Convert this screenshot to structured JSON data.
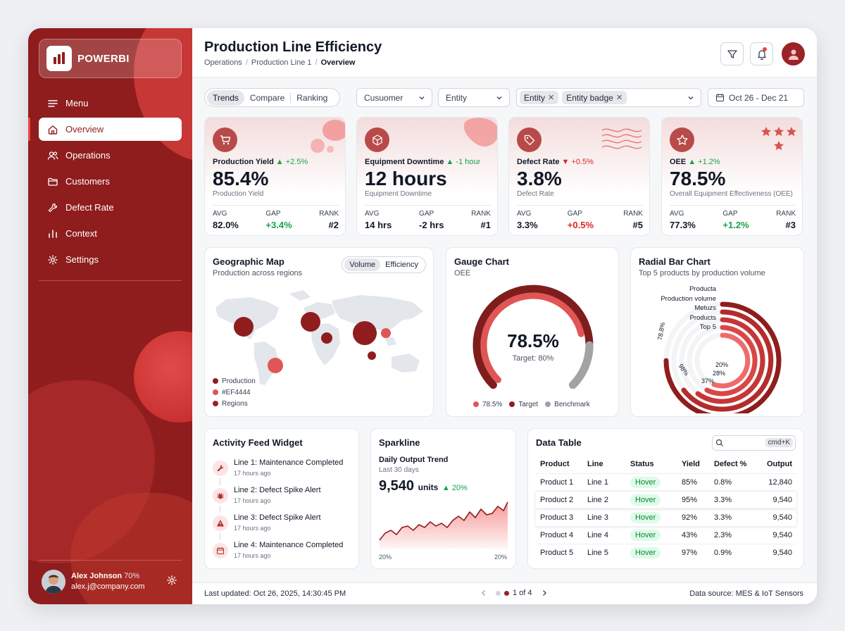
{
  "app": {
    "brand": "POWERBI"
  },
  "sidebar": {
    "items": [
      {
        "label": "Menu",
        "icon": "menu-icon"
      },
      {
        "label": "Overview",
        "icon": "home-icon",
        "active": true
      },
      {
        "label": "Operations",
        "icon": "users-icon"
      },
      {
        "label": "Customers",
        "icon": "folder-icon"
      },
      {
        "label": "Defect Rate",
        "icon": "wrench-icon"
      },
      {
        "label": "Context",
        "icon": "bar-chart-icon"
      },
      {
        "label": "Settings",
        "icon": "gear-icon"
      }
    ],
    "user": {
      "name": "Alex Johnson",
      "pct": "70%",
      "email": "alex.j@company.com"
    }
  },
  "header": {
    "title": "Production Line Efficiency",
    "breadcrumb": [
      "Operations",
      "Production Line 1",
      "Overview"
    ]
  },
  "filters": {
    "segments": [
      "Trends",
      "Compare",
      "Ranking"
    ],
    "customer": "Cusuomer",
    "entity": "Entity",
    "chips": [
      "Entity",
      "Entity badge"
    ],
    "date": "Oct 26 - Dec 21"
  },
  "kpis": [
    {
      "label": "Production Yield",
      "delta": "+2.5%",
      "dir": "up",
      "value": "85.4%",
      "sub": "Production Yield",
      "avg": "82.0%",
      "gap": "+3.4%",
      "gap_dir": "up",
      "rank": "#2",
      "icon": "cart-icon"
    },
    {
      "label": "Equipment Downtime",
      "delta": "-1 hour",
      "dir": "up",
      "value": "12 hours",
      "sub": "Equipment Downtime",
      "avg": "14 hrs",
      "gap": "-2 hrs",
      "gap_dir": "neutral",
      "rank": "#1",
      "icon": "box-icon"
    },
    {
      "label": "Defect Rate",
      "delta": "+0.5%",
      "dir": "down",
      "value": "3.8%",
      "sub": "Defect Rate",
      "avg": "3.3%",
      "gap": "+0.5%",
      "gap_dir": "down",
      "rank": "#5",
      "icon": "tag-icon"
    },
    {
      "label": "OEE",
      "delta": "+1.2%",
      "dir": "up",
      "value": "78.5%",
      "sub": "Overall Equipment Effectiveness (OEE)",
      "avg": "77.3%",
      "gap": "+1.2%",
      "gap_dir": "up",
      "rank": "#3",
      "icon": "star-icon"
    }
  ],
  "stat_labels": {
    "avg": "AVG",
    "gap": "GAP",
    "rank": "RANK"
  },
  "map": {
    "title": "Geographic Map",
    "subtitle": "Production across regions",
    "toggle": [
      "Volume",
      "Efficiency"
    ],
    "legend": [
      {
        "label": "Production",
        "color": "#8f1d1d"
      },
      {
        "label": "#EF4444",
        "color": "#e05555"
      },
      {
        "label": "Regions",
        "color": "#9b2226"
      }
    ]
  },
  "gauge": {
    "title": "Gauge Chart",
    "subtitle": "OEE",
    "value": "78.5%",
    "value_num": 78.5,
    "target": "Target: 80%",
    "legend": [
      {
        "label": "78.5%",
        "color": "#e05555"
      },
      {
        "label": "Target",
        "color": "#8f1d1d"
      },
      {
        "label": "Benchmark",
        "color": "#9ca3af"
      }
    ]
  },
  "radial": {
    "title": "Radial Bar Chart",
    "subtitle": "Top 5 products by production volume",
    "labels": [
      "Producta",
      "Production volume",
      "Metuzs",
      "Products",
      "Top 5"
    ],
    "pct_labels": [
      "78.8%",
      "98%",
      "37%",
      "28%",
      "20%"
    ]
  },
  "activity": {
    "title": "Activity Feed Widget",
    "items": [
      {
        "text": "Line 1: Maintenance Completed",
        "time": "17 hours ago",
        "icon": "wrench-icon"
      },
      {
        "text": "Line 2: Defect Spike Alert",
        "time": "17 hours ago",
        "icon": "bug-icon"
      },
      {
        "text": "Line 3: Defect Spike Alert",
        "time": "17 hours ago",
        "icon": "warning-icon"
      },
      {
        "text": "Line 4: Maintenance Completed",
        "time": "17 hours ago",
        "icon": "calendar-icon"
      }
    ]
  },
  "sparkline": {
    "title": "Sparkline",
    "subtitle": "Daily Output Trend",
    "period": "Last 30 days",
    "value": "9,540",
    "unit": "units",
    "delta": "20%",
    "axis": [
      "20%",
      "20%"
    ]
  },
  "table": {
    "title": "Data Table",
    "search_hint": "cmd+K",
    "columns": [
      "Product",
      "Line",
      "Status",
      "Yield",
      "Defect %",
      "Output"
    ],
    "rows": [
      [
        "Product 1",
        "Line 1",
        "Hover",
        "85%",
        "0.8%",
        "12,840"
      ],
      [
        "Product 2",
        "Line 2",
        "Hover",
        "95%",
        "3.3%",
        "9,540"
      ],
      [
        "Product 3",
        "Line 3",
        "Hover",
        "92%",
        "3.3%",
        "9,540"
      ],
      [
        "Product 4",
        "Line 4",
        "Hover",
        "43%",
        "2.3%",
        "9,540"
      ],
      [
        "Product 5",
        "Line 5",
        "Hover",
        "97%",
        "0.9%",
        "9,540"
      ]
    ]
  },
  "footer": {
    "updated": "Last updated: Oct 26, 2025, 14:30:45 PM",
    "page": "1 of 4",
    "source": "Data source: MES & IoT Sensors"
  },
  "colors": {
    "brand": "#8f1d1d",
    "accent": "#ef4444",
    "success": "#16a34a",
    "danger": "#dc2626"
  }
}
